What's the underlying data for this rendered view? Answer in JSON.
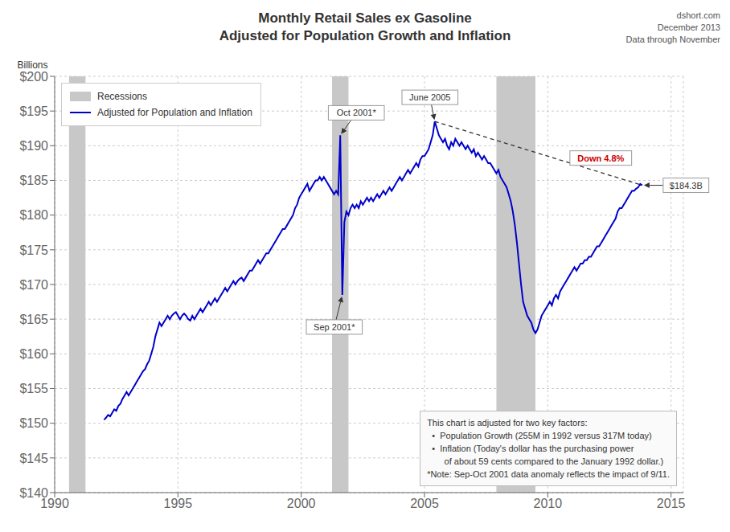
{
  "chart_data": {
    "type": "line",
    "title": "Monthly Retail Sales ex Gasoline",
    "subtitle": "Adjusted for Population Growth and Inflation",
    "ylabel": "Billions",
    "source": [
      "dshort.com",
      "December 2013",
      "Data through November"
    ],
    "note": [
      "This chart is adjusted for two key factors:",
      "  •  Population Growth (255M in 1992 versus 317M today)",
      "  •  Inflation (Today's dollar has the purchasing power",
      "       of about 59 cents compared to the January 1992 dollar.)",
      "*Note: Sep-Oct 2001 data anomaly reflects the impact of 9/11."
    ],
    "xlim": [
      1990.0,
      2015.5
    ],
    "ylim": [
      140,
      200
    ],
    "xticks": [
      1990,
      1995,
      2000,
      2005,
      2010,
      2015
    ],
    "yticks": [
      {
        "value": 140,
        "label": "$140"
      },
      {
        "value": 145,
        "label": "$145"
      },
      {
        "value": 150,
        "label": "$150"
      },
      {
        "value": 155,
        "label": "$155"
      },
      {
        "value": 160,
        "label": "$160"
      },
      {
        "value": 165,
        "label": "$165"
      },
      {
        "value": 170,
        "label": "$170"
      },
      {
        "value": 175,
        "label": "$175"
      },
      {
        "value": 180,
        "label": "$180"
      },
      {
        "value": 185,
        "label": "$185"
      },
      {
        "value": 190,
        "label": "$190"
      },
      {
        "value": 195,
        "label": "$195"
      },
      {
        "value": 200,
        "label": "$200"
      }
    ],
    "grid": true,
    "legend": "upper left",
    "recessions": {
      "name": "Recessions",
      "color": "#C8C8C8",
      "bands": [
        [
          1990.583,
          1991.25
        ],
        [
          2001.25,
          2001.917
        ],
        [
          2007.917,
          2009.5
        ]
      ]
    },
    "x": [
      1992.0,
      1992.083,
      1992.167,
      1992.25,
      1992.333,
      1992.417,
      1992.5,
      1992.583,
      1992.667,
      1992.75,
      1992.833,
      1992.917,
      1993.0,
      1993.083,
      1993.167,
      1993.25,
      1993.333,
      1993.417,
      1993.5,
      1993.583,
      1993.667,
      1993.75,
      1993.833,
      1993.917,
      1994.0,
      1994.083,
      1994.167,
      1994.25,
      1994.333,
      1994.417,
      1994.5,
      1994.583,
      1994.667,
      1994.75,
      1994.833,
      1994.917,
      1995.0,
      1995.083,
      1995.167,
      1995.25,
      1995.333,
      1995.417,
      1995.5,
      1995.583,
      1995.667,
      1995.75,
      1995.833,
      1995.917,
      1996.0,
      1996.083,
      1996.167,
      1996.25,
      1996.333,
      1996.417,
      1996.5,
      1996.583,
      1996.667,
      1996.75,
      1996.833,
      1996.917,
      1997.0,
      1997.083,
      1997.167,
      1997.25,
      1997.333,
      1997.417,
      1997.5,
      1997.583,
      1997.667,
      1997.75,
      1997.833,
      1997.917,
      1998.0,
      1998.083,
      1998.167,
      1998.25,
      1998.333,
      1998.417,
      1998.5,
      1998.583,
      1998.667,
      1998.75,
      1998.833,
      1998.917,
      1999.0,
      1999.083,
      1999.167,
      1999.25,
      1999.333,
      1999.417,
      1999.5,
      1999.583,
      1999.667,
      1999.75,
      1999.833,
      1999.917,
      2000.0,
      2000.083,
      2000.167,
      2000.25,
      2000.333,
      2000.417,
      2000.5,
      2000.583,
      2000.667,
      2000.75,
      2000.833,
      2000.917,
      2001.0,
      2001.083,
      2001.167,
      2001.25,
      2001.333,
      2001.417,
      2001.5,
      2001.583,
      2001.667,
      2001.75,
      2001.833,
      2001.917,
      2002.0,
      2002.083,
      2002.167,
      2002.25,
      2002.333,
      2002.417,
      2002.5,
      2002.583,
      2002.667,
      2002.75,
      2002.833,
      2002.917,
      2003.0,
      2003.083,
      2003.167,
      2003.25,
      2003.333,
      2003.417,
      2003.5,
      2003.583,
      2003.667,
      2003.75,
      2003.833,
      2003.917,
      2004.0,
      2004.083,
      2004.167,
      2004.25,
      2004.333,
      2004.417,
      2004.5,
      2004.583,
      2004.667,
      2004.75,
      2004.833,
      2004.917,
      2005.0,
      2005.083,
      2005.167,
      2005.25,
      2005.333,
      2005.417,
      2005.5,
      2005.583,
      2005.667,
      2005.75,
      2005.833,
      2005.917,
      2006.0,
      2006.083,
      2006.167,
      2006.25,
      2006.333,
      2006.417,
      2006.5,
      2006.583,
      2006.667,
      2006.75,
      2006.833,
      2006.917,
      2007.0,
      2007.083,
      2007.167,
      2007.25,
      2007.333,
      2007.417,
      2007.5,
      2007.583,
      2007.667,
      2007.75,
      2007.833,
      2007.917,
      2008.0,
      2008.083,
      2008.167,
      2008.25,
      2008.333,
      2008.417,
      2008.5,
      2008.583,
      2008.667,
      2008.75,
      2008.833,
      2008.917,
      2009.0,
      2009.083,
      2009.167,
      2009.25,
      2009.333,
      2009.417,
      2009.5,
      2009.583,
      2009.667,
      2009.75,
      2009.833,
      2009.917,
      2010.0,
      2010.083,
      2010.167,
      2010.25,
      2010.333,
      2010.417,
      2010.5,
      2010.583,
      2010.667,
      2010.75,
      2010.833,
      2010.917,
      2011.0,
      2011.083,
      2011.167,
      2011.25,
      2011.333,
      2011.417,
      2011.5,
      2011.583,
      2011.667,
      2011.75,
      2011.833,
      2011.917,
      2012.0,
      2012.083,
      2012.167,
      2012.25,
      2012.333,
      2012.417,
      2012.5,
      2012.583,
      2012.667,
      2012.75,
      2012.833,
      2012.917,
      2013.0,
      2013.083,
      2013.167,
      2013.25,
      2013.333,
      2013.417,
      2013.5,
      2013.583,
      2013.667,
      2013.75,
      2013.833
    ],
    "series": [
      {
        "name": "Adjusted for Population and Inflation",
        "color": "#0000CC",
        "values": [
          150.5,
          150.8,
          151.2,
          151.0,
          151.5,
          152.0,
          151.8,
          152.5,
          152.8,
          153.5,
          154.0,
          154.5,
          154.0,
          154.5,
          155.0,
          155.5,
          156.0,
          156.5,
          157.0,
          157.5,
          157.8,
          158.5,
          159.0,
          160.0,
          161.0,
          162.5,
          163.5,
          164.5,
          164.0,
          164.5,
          165.0,
          165.5,
          165.0,
          165.5,
          165.8,
          166.0,
          165.5,
          165.0,
          165.5,
          165.8,
          165.5,
          165.0,
          164.8,
          165.5,
          165.0,
          165.5,
          166.0,
          166.5,
          166.0,
          166.5,
          167.0,
          167.5,
          167.0,
          167.5,
          168.0,
          167.5,
          168.0,
          168.5,
          169.0,
          169.5,
          169.0,
          169.5,
          170.0,
          170.5,
          170.0,
          170.5,
          170.8,
          171.0,
          170.5,
          171.0,
          171.5,
          172.0,
          172.0,
          172.5,
          173.0,
          173.5,
          173.0,
          173.5,
          174.0,
          174.5,
          174.5,
          175.0,
          175.5,
          176.0,
          176.5,
          177.0,
          177.5,
          178.0,
          178.0,
          178.5,
          179.0,
          179.5,
          180.0,
          181.0,
          181.5,
          182.5,
          183.0,
          183.5,
          184.0,
          184.5,
          183.5,
          184.0,
          184.5,
          185.0,
          185.0,
          185.5,
          185.0,
          185.5,
          185.0,
          184.5,
          184.0,
          183.5,
          183.0,
          183.5,
          183.0,
          191.5,
          168.5,
          179.0,
          180.5,
          180.0,
          181.0,
          181.5,
          181.0,
          181.5,
          181.0,
          182.0,
          181.5,
          182.0,
          182.5,
          182.0,
          182.5,
          182.0,
          182.5,
          183.0,
          182.5,
          183.0,
          183.5,
          183.0,
          183.5,
          184.0,
          183.5,
          184.0,
          184.5,
          185.0,
          185.5,
          185.0,
          185.5,
          186.0,
          186.5,
          186.0,
          186.5,
          187.0,
          187.5,
          187.0,
          188.0,
          188.5,
          188.5,
          189.0,
          189.5,
          190.5,
          191.5,
          193.5,
          192.5,
          191.5,
          191.0,
          190.5,
          191.0,
          190.0,
          189.5,
          190.5,
          190.0,
          191.0,
          190.5,
          190.0,
          190.5,
          190.0,
          189.5,
          190.0,
          189.5,
          189.0,
          189.5,
          188.5,
          189.0,
          188.5,
          188.0,
          188.5,
          188.0,
          187.5,
          187.5,
          187.0,
          186.5,
          186.0,
          186.5,
          185.5,
          185.0,
          184.5,
          184.0,
          183.0,
          182.0,
          180.5,
          178.5,
          176.0,
          173.0,
          170.0,
          167.5,
          166.5,
          165.5,
          165.0,
          164.5,
          163.5,
          163.0,
          163.5,
          164.5,
          165.5,
          166.0,
          166.5,
          167.0,
          167.5,
          167.0,
          168.0,
          168.5,
          168.0,
          169.0,
          169.5,
          170.0,
          170.5,
          171.0,
          171.5,
          172.0,
          172.5,
          172.0,
          172.5,
          173.0,
          173.0,
          173.5,
          173.5,
          174.0,
          174.0,
          174.5,
          175.0,
          175.5,
          175.5,
          176.0,
          176.5,
          177.0,
          177.5,
          178.0,
          178.5,
          179.0,
          179.5,
          180.5,
          181.0,
          181.0,
          181.5,
          182.0,
          182.5,
          183.0,
          183.5,
          183.5,
          183.8,
          184.0,
          184.5,
          184.3
        ]
      }
    ],
    "annotations": [
      {
        "text": "Oct 2001*",
        "x": 2001.583,
        "y": 191.5
      },
      {
        "text": "Sep 2001*",
        "x": 2001.667,
        "y": 168.5
      },
      {
        "text": "June 2005",
        "x": 2005.417,
        "y": 193.5
      },
      {
        "text": "$184.3B",
        "x": 2013.833,
        "y": 184.3
      },
      {
        "text": "Down 4.8%",
        "color": "#CC0000",
        "from": {
          "x": 2005.417,
          "y": 193.5
        },
        "to": {
          "x": 2013.833,
          "y": 184.3
        }
      }
    ]
  }
}
